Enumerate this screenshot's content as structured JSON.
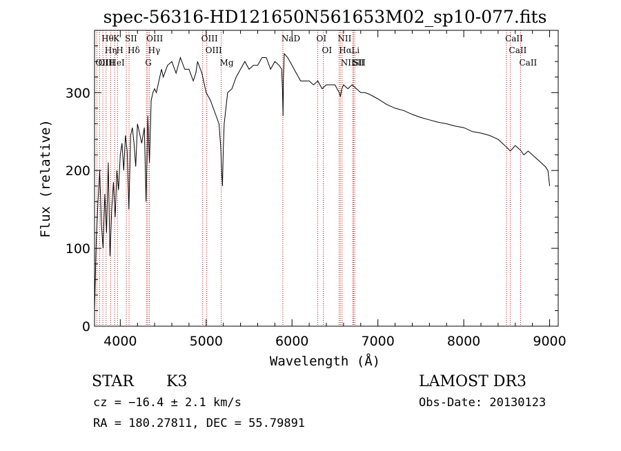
{
  "chart_data": {
    "type": "line",
    "title": "spec-56316-HD121650N561653M02_sp10-077.fits",
    "xlabel": "Wavelength (Å)",
    "ylabel": "Flux (relative)",
    "xlim": [
      3700,
      9100
    ],
    "ylim": [
      0,
      380
    ],
    "xticks": [
      4000,
      5000,
      6000,
      7000,
      8000,
      9000
    ],
    "yticks": [
      0,
      100,
      200,
      300
    ],
    "grid": false,
    "series": [
      {
        "name": "Flux",
        "x": [
          3700,
          3720,
          3740,
          3760,
          3780,
          3800,
          3820,
          3840,
          3860,
          3880,
          3900,
          3920,
          3940,
          3960,
          3980,
          4000,
          4020,
          4040,
          4060,
          4080,
          4100,
          4120,
          4140,
          4160,
          4180,
          4200,
          4220,
          4250,
          4280,
          4300,
          4320,
          4340,
          4360,
          4380,
          4400,
          4420,
          4450,
          4480,
          4500,
          4550,
          4600,
          4650,
          4700,
          4750,
          4800,
          4850,
          4880,
          4900,
          4950,
          5000,
          5050,
          5100,
          5150,
          5170,
          5180,
          5190,
          5200,
          5210,
          5250,
          5300,
          5350,
          5400,
          5450,
          5500,
          5550,
          5600,
          5650,
          5700,
          5750,
          5800,
          5850,
          5880,
          5890,
          5895,
          5900,
          5910,
          5950,
          6000,
          6050,
          6100,
          6150,
          6200,
          6250,
          6300,
          6350,
          6400,
          6450,
          6500,
          6550,
          6563,
          6580,
          6600,
          6650,
          6700,
          6750,
          6800,
          6850,
          6900,
          6950,
          7000,
          7100,
          7200,
          7300,
          7400,
          7500,
          7600,
          7700,
          7800,
          7900,
          8000,
          8100,
          8200,
          8300,
          8400,
          8498,
          8542,
          8600,
          8662,
          8700,
          8750,
          8800,
          8850,
          8900,
          8950,
          8980,
          9000
        ],
        "values": [
          20,
          110,
          160,
          200,
          130,
          100,
          170,
          120,
          210,
          90,
          150,
          185,
          140,
          200,
          175,
          220,
          235,
          200,
          245,
          225,
          150,
          245,
          255,
          235,
          205,
          260,
          250,
          235,
          255,
          160,
          270,
          210,
          290,
          300,
          305,
          300,
          315,
          330,
          320,
          335,
          340,
          325,
          345,
          330,
          330,
          315,
          325,
          340,
          325,
          300,
          290,
          275,
          260,
          230,
          200,
          180,
          230,
          260,
          300,
          305,
          320,
          330,
          340,
          330,
          335,
          335,
          345,
          345,
          330,
          340,
          335,
          330,
          300,
          270,
          320,
          350,
          345,
          335,
          325,
          315,
          315,
          315,
          310,
          315,
          305,
          310,
          310,
          310,
          300,
          295,
          305,
          310,
          305,
          310,
          305,
          300,
          300,
          298,
          295,
          292,
          285,
          280,
          277,
          272,
          268,
          265,
          262,
          260,
          257,
          255,
          250,
          248,
          245,
          240,
          230,
          225,
          232,
          226,
          220,
          225,
          220,
          215,
          210,
          205,
          200,
          180
        ]
      }
    ],
    "annotations": [
      {
        "label": "Hθ",
        "wavelength": 3797
      },
      {
        "label": "Hη",
        "wavelength": 3835
      },
      {
        "label": "OII",
        "wavelength": 3727
      },
      {
        "label": "OIII",
        "wavelength": 3760
      },
      {
        "label": "HeI",
        "wavelength": 3888
      },
      {
        "label": "K",
        "wavelength": 3934
      },
      {
        "label": "H",
        "wavelength": 3968
      },
      {
        "label": "SII",
        "wavelength": 4070
      },
      {
        "label": "Hδ",
        "wavelength": 4102
      },
      {
        "label": "OIII",
        "wavelength": 4320
      },
      {
        "label": "Hγ",
        "wavelength": 4340
      },
      {
        "label": "G",
        "wavelength": 4305
      },
      {
        "label": "OIII",
        "wavelength": 4959
      },
      {
        "label": "OIII",
        "wavelength": 5007
      },
      {
        "label": "Mg",
        "wavelength": 5175
      },
      {
        "label": "NaD",
        "wavelength": 5893
      },
      {
        "label": "OI",
        "wavelength": 6300
      },
      {
        "label": "OI",
        "wavelength": 6364
      },
      {
        "label": "NII",
        "wavelength": 6548
      },
      {
        "label": "Hα",
        "wavelength": 6563
      },
      {
        "label": "NII",
        "wavelength": 6583
      },
      {
        "label": "Li",
        "wavelength": 6708
      },
      {
        "label": "SII",
        "wavelength": 6716
      },
      {
        "label": "SII",
        "wavelength": 6731
      },
      {
        "label": "CaII",
        "wavelength": 8498
      },
      {
        "label": "CaII",
        "wavelength": 8542
      },
      {
        "label": "CaII",
        "wavelength": 8662
      }
    ]
  },
  "info": {
    "object_type": "STAR",
    "subclass": "K3",
    "survey": "LAMOST DR3",
    "cz": "cz = −16.4 ± 2.1 km/s",
    "obs_date": "Obs-Date: 20130123",
    "coords": "RA = 180.27811, DEC =  55.79891"
  },
  "colors": {
    "axis": "#000000",
    "line": "#000000",
    "marker": "#cc0000",
    "background": "#ffffff"
  }
}
